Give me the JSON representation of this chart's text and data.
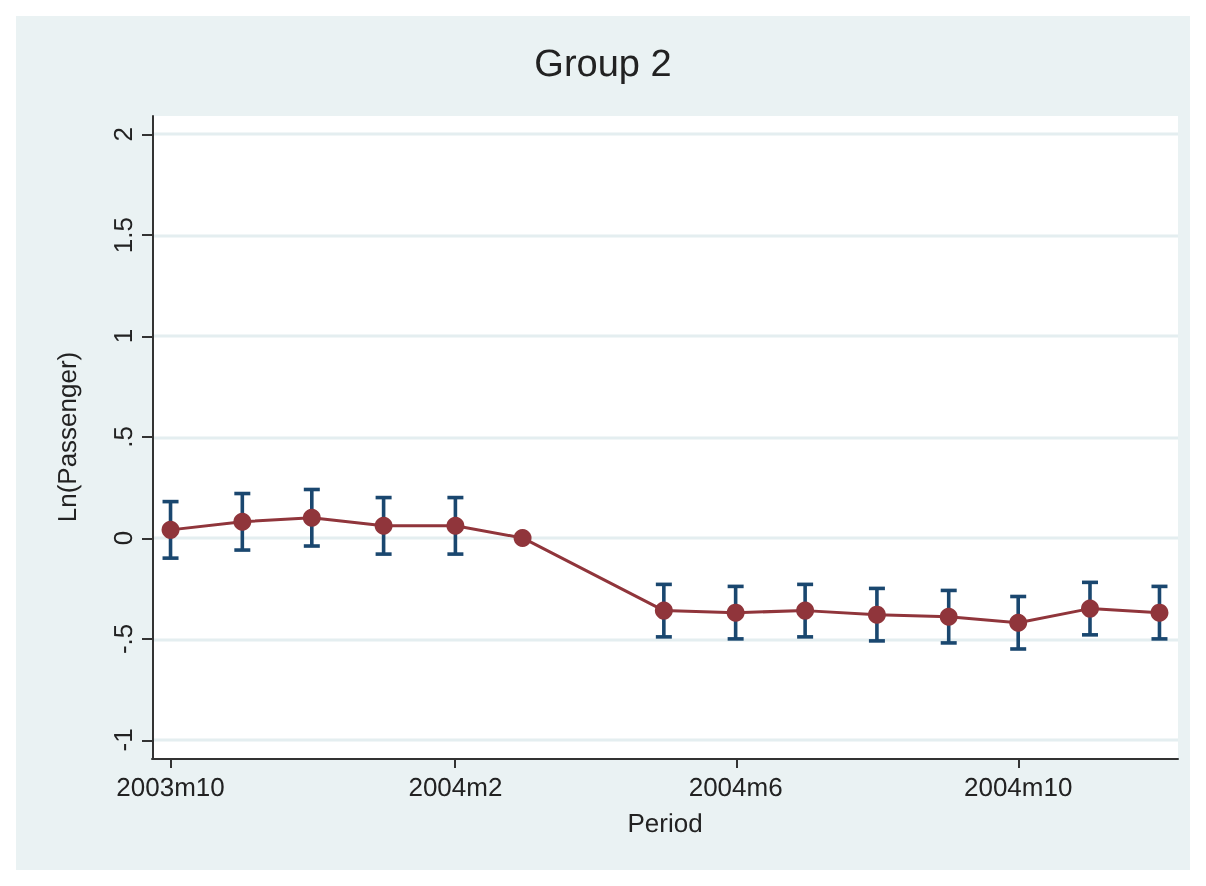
{
  "chart_data": {
    "type": "line",
    "title": "Group 2",
    "xlabel": "Period",
    "ylabel": "Ln(Passenger)",
    "x": [
      "2003-10",
      "2003-11",
      "2003-12",
      "2004-01",
      "2004-02",
      "2004-03",
      "2004-05",
      "2004-06",
      "2004-07",
      "2004-08",
      "2004-09",
      "2004-10",
      "2004-11",
      "2004-12"
    ],
    "series": [
      {
        "color": "#90353b",
        "values": [
          0.04,
          0.08,
          0.1,
          0.06,
          0.06,
          0.0,
          -0.36,
          -0.37,
          -0.36,
          -0.38,
          -0.39,
          -0.42,
          -0.35,
          -0.37
        ],
        "errors": [
          0.14,
          0.14,
          0.14,
          0.14,
          0.14,
          null,
          0.13,
          0.13,
          0.13,
          0.13,
          0.13,
          0.13,
          0.13,
          0.13
        ]
      }
    ],
    "xlim": [
      "2003-09-23",
      "2004-12-09"
    ],
    "xticks": [
      {
        "value": "2003-10",
        "label": "2003m10"
      },
      {
        "value": "2004-02",
        "label": "2004m2"
      },
      {
        "value": "2004-06",
        "label": "2004m6"
      },
      {
        "value": "2004-10",
        "label": "2004m10"
      }
    ],
    "ylim": [
      -1.09,
      2.09
    ],
    "yticks": [
      {
        "value": -1,
        "label": "-1"
      },
      {
        "value": -0.5,
        "label": "-.5"
      },
      {
        "value": 0,
        "label": "0"
      },
      {
        "value": 0.5,
        "label": ".5"
      },
      {
        "value": 1,
        "label": "1"
      },
      {
        "value": 1.5,
        "label": "1.5"
      },
      {
        "value": 2,
        "label": "2"
      }
    ],
    "grid": "y",
    "marker": "circle",
    "line_style": "solid"
  }
}
